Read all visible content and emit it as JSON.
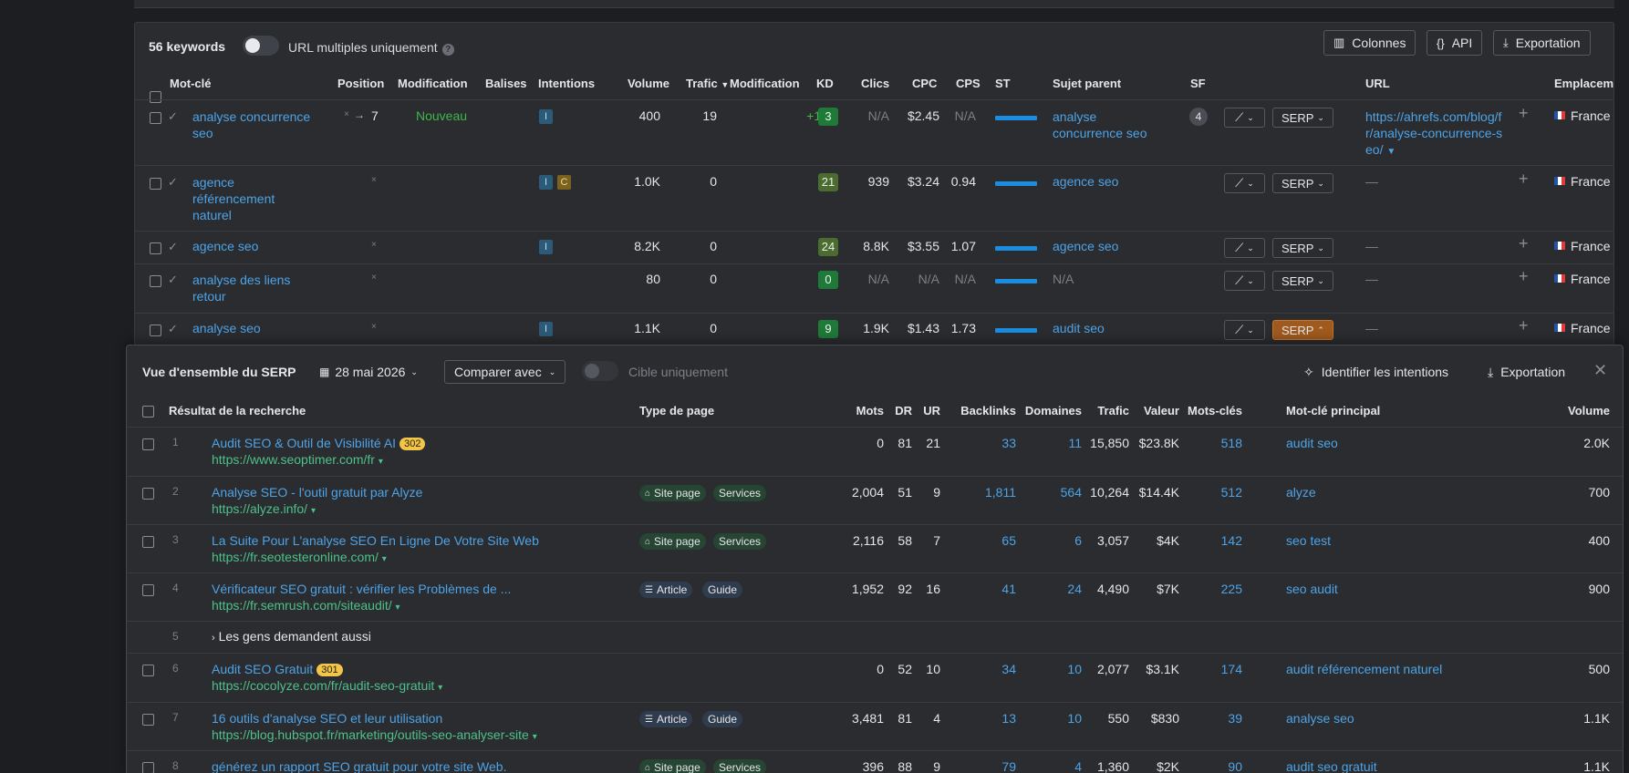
{
  "toolbar": {
    "keyword_count": "56 keywords",
    "url_multiple_label": "URL multiples uniquement",
    "columns_label": "Colonnes",
    "api_label": "API",
    "export_label": "Exportation"
  },
  "table": {
    "headers": {
      "keyword": "Mot-clé",
      "position": "Position",
      "modification": "Modification",
      "tags": "Balises",
      "intentions": "Intentions",
      "volume": "Volume",
      "traffic": "Trafic",
      "traffic_change": "Modification",
      "kd": "KD",
      "clicks": "Clics",
      "cpc": "CPC",
      "cps": "CPS",
      "st": "ST",
      "parent": "Sujet parent",
      "sf": "SF",
      "url": "URL",
      "location": "Emplacem"
    },
    "rows": [
      {
        "keyword_l1": "analyse concurrence",
        "keyword_l2": "seo",
        "keyword_l3": "",
        "pos_prev": "×",
        "pos_arrow": "→",
        "pos": "7",
        "modification": "Nouveau",
        "intent1": "I",
        "intent2": "",
        "volume": "400",
        "traffic": "19",
        "traffic_change": "+19",
        "kd": "3",
        "clicks": "N/A",
        "cpc": "$2.45",
        "cps": "N/A",
        "parent_l1": "analyse",
        "parent_l2": "concurrence seo",
        "sf": "4",
        "serp": "SERP",
        "url_l1": "https://ahrefs.com/blog/f",
        "url_l2": "r/analyse-concurrence-s",
        "url_l3": "eo/",
        "location": "France"
      },
      {
        "keyword_l1": "agence",
        "keyword_l2": "référencement",
        "keyword_l3": "naturel",
        "pos_prev": "×",
        "intent1": "I",
        "intent2": "C",
        "volume": "1.0K",
        "traffic": "0",
        "kd": "21",
        "clicks": "939",
        "cpc": "$3.24",
        "cps": "0.94",
        "parent_l1": "agence seo",
        "serp": "SERP",
        "url_l1": "—",
        "location": "France"
      },
      {
        "keyword_l1": "agence seo",
        "pos_prev": "×",
        "intent1": "I",
        "volume": "8.2K",
        "traffic": "0",
        "kd": "24",
        "clicks": "8.8K",
        "cpc": "$3.55",
        "cps": "1.07",
        "parent_l1": "agence seo",
        "serp": "SERP",
        "url_l1": "—",
        "location": "France"
      },
      {
        "keyword_l1": "analyse des liens",
        "keyword_l2": "retour",
        "pos_prev": "×",
        "volume": "80",
        "traffic": "0",
        "kd": "0",
        "clicks": "N/A",
        "cpc": "N/A",
        "cps": "N/A",
        "parent_l1": "N/A",
        "serp": "SERP",
        "url_l1": "—",
        "location": "France"
      },
      {
        "keyword_l1": "analyse seo",
        "pos_prev": "×",
        "intent1": "I",
        "volume": "1.1K",
        "traffic": "0",
        "kd": "9",
        "clicks": "1.9K",
        "cpc": "$1.43",
        "cps": "1.73",
        "parent_l1": "audit seo",
        "serp": "SERP",
        "url_l1": "—",
        "location": "France"
      }
    ]
  },
  "serp": {
    "title": "Vue d'ensemble du SERP",
    "date": "28 mai 2026",
    "compare_label": "Comparer avec",
    "target_only_label": "Cible uniquement",
    "identify_label": "Identifier les intentions",
    "export_label": "Exportation",
    "headers": {
      "result": "Résultat de la recherche",
      "page_type": "Type de page",
      "words": "Mots",
      "dr": "DR",
      "ur": "UR",
      "backlinks": "Backlinks",
      "domains": "Domaines",
      "traffic": "Trafic",
      "value": "Valeur",
      "keywords": "Mots-clés",
      "main_keyword": "Mot-clé principal",
      "volume": "Volume"
    },
    "rows": [
      {
        "rank": "1",
        "title": "Audit SEO & Outil de Visibilité AI",
        "pill": "302",
        "url": "https://www.seoptimer.com/fr",
        "type1": "",
        "type2": "",
        "words": "0",
        "dr": "81",
        "ur": "21",
        "backlinks": "33",
        "domains": "11",
        "traffic": "15,850",
        "value": "$23.8K",
        "keywords": "518",
        "main_kw": "audit seo",
        "volume": "2.0K"
      },
      {
        "rank": "2",
        "title": "Analyse SEO - l'outil gratuit par Alyze",
        "url": "https://alyze.info/",
        "type1": "Site page",
        "type2": "Services",
        "words": "2,004",
        "dr": "51",
        "ur": "9",
        "backlinks": "1,811",
        "domains": "564",
        "traffic": "10,264",
        "value": "$14.4K",
        "keywords": "512",
        "main_kw": "alyze",
        "volume": "700"
      },
      {
        "rank": "3",
        "title": "La Suite Pour L'analyse SEO En Ligne De Votre Site Web",
        "url": "https://fr.seotesteronline.com/",
        "type1": "Site page",
        "type2": "Services",
        "words": "2,116",
        "dr": "58",
        "ur": "7",
        "backlinks": "65",
        "domains": "6",
        "traffic": "3,057",
        "value": "$4K",
        "keywords": "142",
        "main_kw": "seo test",
        "volume": "400"
      },
      {
        "rank": "4",
        "title": "Vérificateur SEO gratuit : vérifier les Problèmes de ...",
        "url": "https://fr.semrush.com/siteaudit/",
        "type1": "Article",
        "type2": "Guide",
        "words": "1,952",
        "dr": "92",
        "ur": "16",
        "backlinks": "41",
        "domains": "24",
        "traffic": "4,490",
        "value": "$7K",
        "keywords": "225",
        "main_kw": "seo audit",
        "volume": "900"
      },
      {
        "rank": "5",
        "paa": "Les gens demandent aussi"
      },
      {
        "rank": "6",
        "title": "Audit SEO Gratuit",
        "pill": "301",
        "url": "https://cocolyze.com/fr/audit-seo-gratuit",
        "words": "0",
        "dr": "52",
        "ur": "10",
        "backlinks": "34",
        "domains": "10",
        "traffic": "2,077",
        "value": "$3.1K",
        "keywords": "174",
        "main_kw": "audit référencement naturel",
        "volume": "500"
      },
      {
        "rank": "7",
        "title": "16 outils d'analyse SEO et leur utilisation",
        "url": "https://blog.hubspot.fr/marketing/outils-seo-analyser-site",
        "type1": "Article",
        "type2": "Guide",
        "words": "3,481",
        "dr": "81",
        "ur": "4",
        "backlinks": "13",
        "domains": "10",
        "traffic": "550",
        "value": "$830",
        "keywords": "39",
        "main_kw": "analyse seo",
        "volume": "1.1K"
      },
      {
        "rank": "8",
        "title": "générez un rapport SEO gratuit pour votre site Web.",
        "url": "",
        "type1": "Site page",
        "type2": "Services",
        "words": "396",
        "dr": "88",
        "ur": "9",
        "backlinks": "79",
        "domains": "4",
        "traffic": "1,360",
        "value": "$2K",
        "keywords": "90",
        "main_kw": "audit seo gratuit",
        "volume": "1.1K"
      }
    ]
  }
}
